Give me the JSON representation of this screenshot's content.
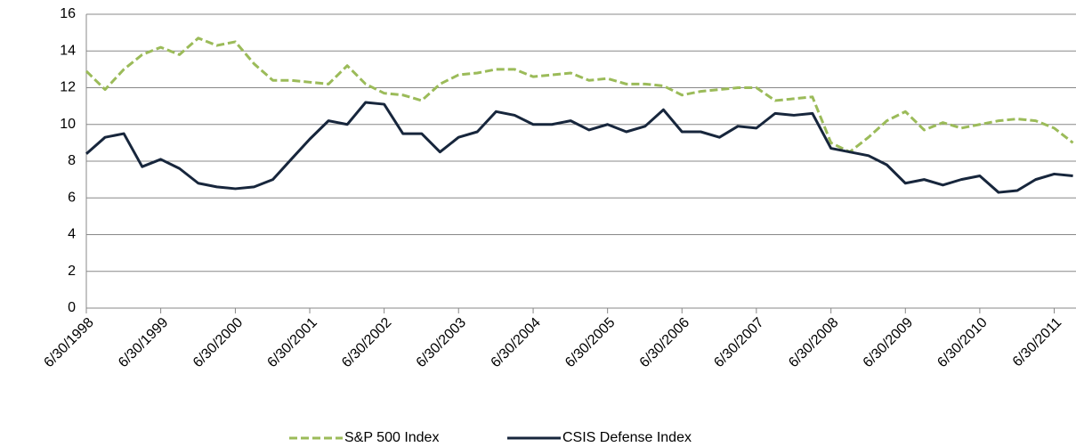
{
  "chart_data": {
    "type": "line",
    "x": [
      "1998-06-30",
      "1998-09-30",
      "1998-12-31",
      "1999-03-31",
      "1999-06-30",
      "1999-09-30",
      "1999-12-31",
      "2000-03-31",
      "2000-06-30",
      "2000-09-30",
      "2000-12-31",
      "2001-03-31",
      "2001-06-30",
      "2001-09-30",
      "2001-12-31",
      "2002-03-31",
      "2002-06-30",
      "2002-09-30",
      "2002-12-31",
      "2003-03-31",
      "2003-06-30",
      "2003-09-30",
      "2003-12-31",
      "2004-03-31",
      "2004-06-30",
      "2004-09-30",
      "2004-12-31",
      "2005-03-31",
      "2005-06-30",
      "2005-09-30",
      "2005-12-31",
      "2006-03-31",
      "2006-06-30",
      "2006-09-30",
      "2006-12-31",
      "2007-03-31",
      "2007-06-30",
      "2007-09-30",
      "2007-12-31",
      "2008-03-31",
      "2008-06-30",
      "2008-09-30",
      "2008-12-31",
      "2009-03-31",
      "2009-06-30",
      "2009-09-30",
      "2009-12-31",
      "2010-03-31",
      "2010-06-30",
      "2010-09-30",
      "2010-12-31",
      "2011-03-31",
      "2011-06-30",
      "2011-09-30"
    ],
    "series": [
      {
        "name": "S&P 500 Index",
        "color": "#9bbb59",
        "dashed": true,
        "values": [
          12.9,
          11.9,
          13.0,
          13.8,
          14.2,
          13.8,
          14.7,
          14.3,
          14.5,
          13.3,
          12.4,
          12.4,
          12.3,
          12.2,
          13.2,
          12.2,
          11.7,
          11.6,
          11.3,
          12.2,
          12.7,
          12.8,
          13.0,
          13.0,
          12.6,
          12.7,
          12.8,
          12.4,
          12.5,
          12.2,
          12.2,
          12.1,
          11.6,
          11.8,
          11.9,
          12.0,
          12.0,
          11.3,
          11.4,
          11.5,
          9.0,
          8.5,
          9.3,
          10.2,
          10.7,
          9.7,
          10.1,
          9.8,
          10.0,
          10.2,
          10.3,
          10.2,
          9.8,
          9.0
        ]
      },
      {
        "name": "CSIS Defense Index",
        "color": "#17263c",
        "dashed": false,
        "values": [
          8.4,
          9.3,
          9.5,
          7.7,
          8.1,
          7.6,
          6.8,
          6.6,
          6.5,
          6.6,
          7.0,
          8.1,
          9.2,
          10.2,
          10.0,
          11.2,
          11.1,
          9.5,
          9.5,
          8.5,
          9.3,
          9.6,
          10.7,
          10.5,
          10.0,
          10.0,
          10.2,
          9.7,
          10.0,
          9.6,
          9.9,
          10.8,
          9.6,
          9.6,
          9.3,
          9.9,
          9.8,
          10.6,
          10.5,
          10.6,
          8.7,
          8.5,
          8.3,
          7.8,
          6.8,
          7.0,
          6.7,
          7.0,
          7.2,
          6.3,
          6.4,
          7.0,
          7.3,
          7.2
        ]
      }
    ],
    "xlim": [
      "1998-06-30",
      "2011-10-15"
    ],
    "xticks": [
      {
        "value": "1998-06-30",
        "label": "6/30/1998"
      },
      {
        "value": "1999-06-30",
        "label": "6/30/1999"
      },
      {
        "value": "2000-06-30",
        "label": "6/30/2000"
      },
      {
        "value": "2001-06-30",
        "label": "6/30/2001"
      },
      {
        "value": "2002-06-30",
        "label": "6/30/2002"
      },
      {
        "value": "2003-06-30",
        "label": "6/30/2003"
      },
      {
        "value": "2004-06-30",
        "label": "6/30/2004"
      },
      {
        "value": "2005-06-30",
        "label": "6/30/2005"
      },
      {
        "value": "2006-06-30",
        "label": "6/30/2006"
      },
      {
        "value": "2007-06-30",
        "label": "6/30/2007"
      },
      {
        "value": "2008-06-30",
        "label": "6/30/2008"
      },
      {
        "value": "2009-06-30",
        "label": "6/30/2009"
      },
      {
        "value": "2010-06-30",
        "label": "6/30/2010"
      },
      {
        "value": "2011-06-30",
        "label": "6/30/2011"
      }
    ],
    "ylim": [
      0,
      16
    ],
    "yticks": [
      0,
      2,
      4,
      6,
      8,
      10,
      12,
      14,
      16
    ],
    "grid": true,
    "legend": "bottom"
  }
}
